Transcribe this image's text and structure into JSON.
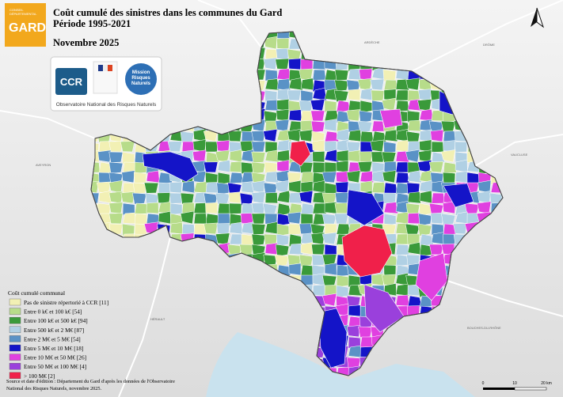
{
  "header": {
    "logo": [
      "CONSEIL",
      "DÉPARTEMENTAL",
      "GARD"
    ],
    "title": [
      "Coût cumulé des sinistres dans les communes du Gard",
      "Période 1995-2021"
    ],
    "date": "Novembre 2025"
  },
  "partners": {
    "ccr": "CCR",
    "mission": [
      "Mission",
      "Risques",
      "Naturels"
    ],
    "caption": "Observatoire National des Risques Naturels"
  },
  "neighbors": [
    "ARDÈCHE",
    "DRÔME",
    "AVEYRON",
    "VAUCLUSE",
    "HÉRAULT",
    "BOUCHES-DU-RHÔNE"
  ],
  "legend": {
    "title": "Coût cumulé communal",
    "items": [
      {
        "label": "Pas de sinistre répertorié à CCR [11]",
        "color": "#f2f0b4"
      },
      {
        "label": "Entre 0 k€ et 100 k€ [54]",
        "color": "#b7dc8a"
      },
      {
        "label": "Entre 100 k€ et 500 k€ [94]",
        "color": "#3a9a3a"
      },
      {
        "label": "Entre 500 k€ et 2 M€ [87]",
        "color": "#b0d0e4"
      },
      {
        "label": "Entre 2 M€ et 5 M€ [54]",
        "color": "#5a92c6"
      },
      {
        "label": "Entre 5 M€ et 10 M€ [18]",
        "color": "#1414c8"
      },
      {
        "label": "Entre 10 M€ et 50 M€ [26]",
        "color": "#e040e0"
      },
      {
        "label": "Entre 50 M€ et 100 M€ [4]",
        "color": "#9a40dc"
      },
      {
        "label": "> 100 M€ [2]",
        "color": "#f0204a"
      }
    ]
  },
  "source": [
    "Source et date d'édition : Département du Gard d'après les données de l'Observatoire",
    "National des Risques Naturels, novembre 2025."
  ],
  "scale": [
    "0",
    "10",
    "20 km"
  ]
}
